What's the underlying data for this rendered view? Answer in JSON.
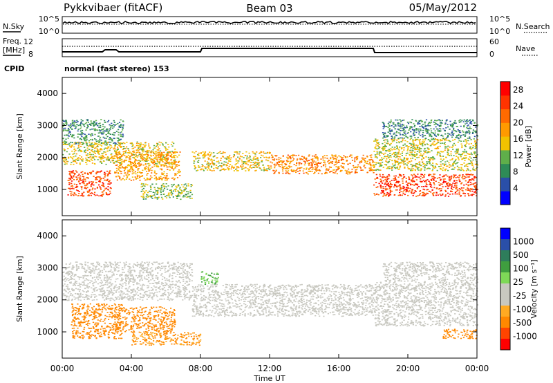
{
  "header": {
    "station": "Pykkvibaer (fitACF)",
    "beam": "Beam 03",
    "date": "05/May/2012"
  },
  "noise_panel": {
    "left_label": "N.Sky",
    "left_ticks": [
      "10^5",
      "10^0"
    ],
    "right_label": "N.Search",
    "right_ticks": [
      "10^5",
      "10^0"
    ]
  },
  "freq_panel": {
    "left_label_line1": "Freq.",
    "left_label_line2": "[MHz]",
    "left_ticks": [
      "12",
      "8"
    ],
    "right_label": "Nave",
    "right_ticks": [
      "60",
      "0"
    ]
  },
  "cpid": {
    "label": "CPID",
    "value": "normal (fast stereo) 153"
  },
  "colors": {
    "power_scale": [
      "#0000ff",
      "#2a4fa8",
      "#2e8b57",
      "#5fae4a",
      "#f2c200",
      "#ff9a00",
      "#ff6a00",
      "#ff3300",
      "#ff0000"
    ],
    "velocity_scale": [
      "#ff0000",
      "#ff4400",
      "#ff8800",
      "#ffaa22",
      "#c8c8c0",
      "#c8c8c0",
      "#7ed957",
      "#3f9e3f",
      "#2e7d5b",
      "#2a4fa8",
      "#0000ff"
    ]
  },
  "chart_data": [
    {
      "type": "heatmap",
      "title": "Power",
      "ylabel": "Slant Range [km]",
      "xlabel": "",
      "ylim": [
        180,
        4500
      ],
      "yticks": [
        "1000",
        "2000",
        "3000",
        "4000"
      ],
      "xticks": [
        "00:00",
        "04:00",
        "08:00",
        "12:00",
        "16:00",
        "20:00",
        "00:00"
      ],
      "colorbar": {
        "label": "Power [dB]",
        "ticks": [
          "4",
          "8",
          "12",
          "16",
          "20",
          "24",
          "28"
        ],
        "range": [
          0,
          30
        ]
      },
      "bands": [
        {
          "t": [
            0.0,
            3.5
          ],
          "r": [
            2400,
            3200
          ],
          "value": 9
        },
        {
          "t": [
            0.0,
            6.5
          ],
          "r": [
            1800,
            2500
          ],
          "value": 15
        },
        {
          "t": [
            0.3,
            2.8
          ],
          "r": [
            800,
            1600
          ],
          "value": 24
        },
        {
          "t": [
            3.0,
            6.8
          ],
          "r": [
            1300,
            2200
          ],
          "value": 18
        },
        {
          "t": [
            4.5,
            7.5
          ],
          "r": [
            700,
            1200
          ],
          "value": 12
        },
        {
          "t": [
            7.5,
            12.0
          ],
          "r": [
            1600,
            2200
          ],
          "value": 16
        },
        {
          "t": [
            12.0,
            18.0
          ],
          "r": [
            1500,
            2100
          ],
          "value": 20
        },
        {
          "t": [
            18.0,
            24.0
          ],
          "r": [
            800,
            1500
          ],
          "value": 25
        },
        {
          "t": [
            18.0,
            24.0
          ],
          "r": [
            1600,
            2600
          ],
          "value": 14
        },
        {
          "t": [
            18.5,
            24.0
          ],
          "r": [
            2600,
            3200
          ],
          "value": 8
        }
      ]
    },
    {
      "type": "heatmap",
      "title": "Velocity",
      "ylabel": "Slant Range [km]",
      "xlabel": "Time UT",
      "ylim": [
        180,
        4500
      ],
      "yticks": [
        "1000",
        "2000",
        "3000",
        "4000"
      ],
      "xticks": [
        "00:00",
        "04:00",
        "08:00",
        "12:00",
        "16:00",
        "20:00",
        "00:00"
      ],
      "colorbar": {
        "label": "Velocity [m s⁻¹]",
        "ticks": [
          "1000",
          "500",
          "100",
          "25",
          "-25",
          "-100",
          "-500",
          "-1000"
        ]
      },
      "bands": [
        {
          "t": [
            0.0,
            7.5
          ],
          "r": [
            2000,
            3200
          ],
          "value": 0
        },
        {
          "t": [
            0.5,
            3.5
          ],
          "r": [
            800,
            1900
          ],
          "value": -300
        },
        {
          "t": [
            3.0,
            6.5
          ],
          "r": [
            1000,
            1800
          ],
          "value": -200
        },
        {
          "t": [
            4.0,
            8.0
          ],
          "r": [
            600,
            1000
          ],
          "value": -150
        },
        {
          "t": [
            7.5,
            18.0
          ],
          "r": [
            1500,
            2500
          ],
          "value": 0
        },
        {
          "t": [
            8.0,
            9.0
          ],
          "r": [
            2500,
            2900
          ],
          "value": 150
        },
        {
          "t": [
            18.0,
            24.0
          ],
          "r": [
            1200,
            2600
          ],
          "value": 0
        },
        {
          "t": [
            22.0,
            24.0
          ],
          "r": [
            800,
            1100
          ],
          "value": -200
        },
        {
          "t": [
            18.5,
            24.0
          ],
          "r": [
            2600,
            3200
          ],
          "value": 0
        }
      ]
    }
  ]
}
